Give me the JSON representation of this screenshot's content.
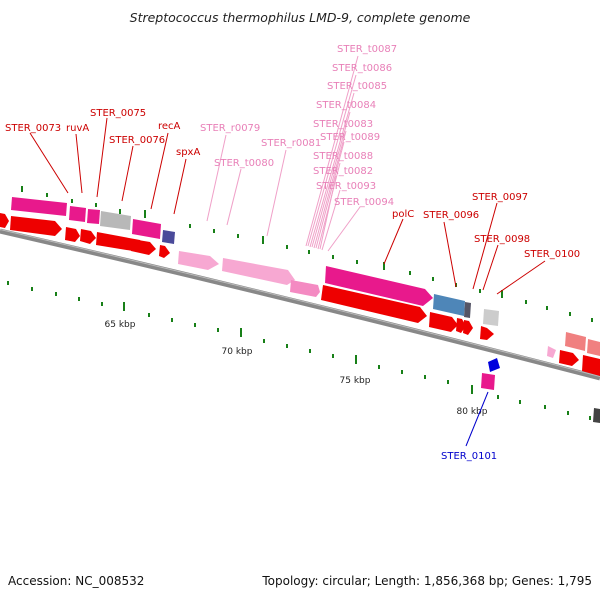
{
  "title": "Streptococcus thermophilus LMD-9, complete genome",
  "accession": "Accession: NC_008532",
  "topology": "Topology: circular; Length: 1,856,368 bp; Genes: 1,795",
  "scale_labels": [
    "65 kbp",
    "70 kbp",
    "75 kbp",
    "80 kbp"
  ],
  "colors": {
    "cds": "#ee0000",
    "cds_dark": "#b80000",
    "gene": "#e8198c",
    "rrna": "#f7a8d2",
    "trna": "#f48ac2",
    "pseudo": "#b8b8b8",
    "other": "#4a4a9a",
    "blue_gene": "#4e86b8",
    "backbone": "#888888",
    "tick": "#188018",
    "label_red": "#cc0000",
    "label_pink": "#e880b8",
    "label_blue": "#0000cc"
  },
  "gene_labels": [
    {
      "name": "STER_0073",
      "kind": "red"
    },
    {
      "name": "ruvA",
      "kind": "red"
    },
    {
      "name": "STER_0075",
      "kind": "red"
    },
    {
      "name": "STER_0076",
      "kind": "red"
    },
    {
      "name": "recA",
      "kind": "red"
    },
    {
      "name": "spxA",
      "kind": "red"
    },
    {
      "name": "STER_r0079",
      "kind": "pink"
    },
    {
      "name": "STER_t0080",
      "kind": "pink"
    },
    {
      "name": "STER_r0081",
      "kind": "pink"
    },
    {
      "name": "STER_t0087",
      "kind": "pink"
    },
    {
      "name": "STER_t0086",
      "kind": "pink"
    },
    {
      "name": "STER_t0085",
      "kind": "pink"
    },
    {
      "name": "STER_t0084",
      "kind": "pink"
    },
    {
      "name": "STER_t0083",
      "kind": "pink"
    },
    {
      "name": "STER_t0089",
      "kind": "pink"
    },
    {
      "name": "STER_t0088",
      "kind": "pink"
    },
    {
      "name": "STER_t0082",
      "kind": "pink"
    },
    {
      "name": "STER_t0093",
      "kind": "pink"
    },
    {
      "name": "STER_t0094",
      "kind": "pink"
    },
    {
      "name": "polC",
      "kind": "red"
    },
    {
      "name": "STER_0096",
      "kind": "red"
    },
    {
      "name": "STER_0097",
      "kind": "red"
    },
    {
      "name": "STER_0098",
      "kind": "red"
    },
    {
      "name": "STER_0100",
      "kind": "red"
    },
    {
      "name": "STER_0101",
      "kind": "blue"
    }
  ]
}
